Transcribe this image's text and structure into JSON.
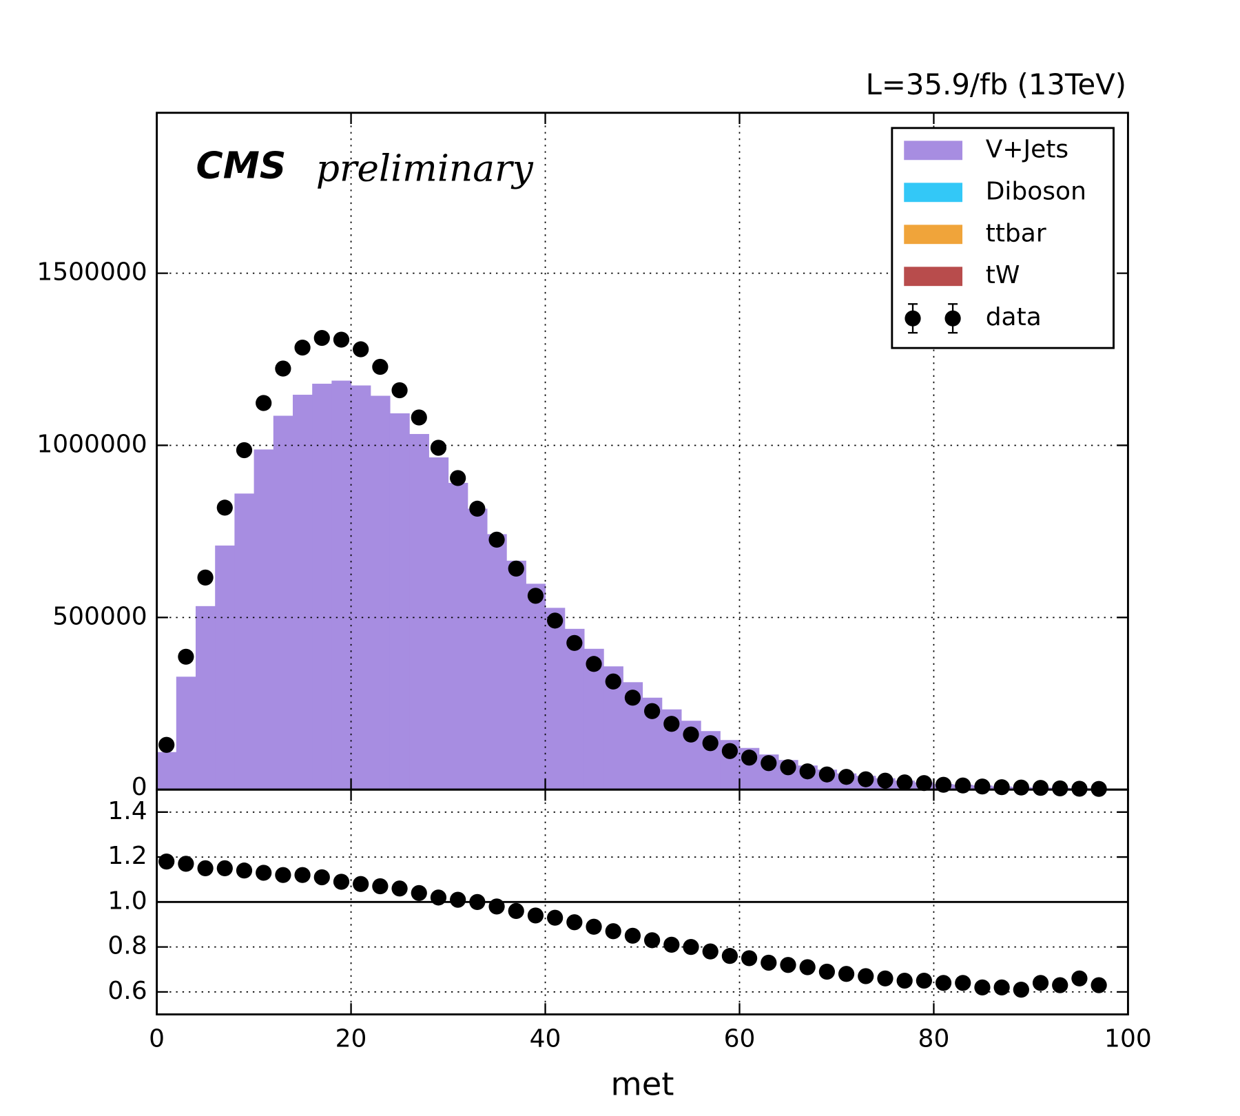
{
  "chart_data": [
    {
      "type": "histogram",
      "title": "L=35.9/fb (13TeV)",
      "annotations": [
        "CMS",
        "preliminary"
      ],
      "bins": [
        0,
        2,
        4,
        6,
        8,
        10,
        12,
        14,
        16,
        18,
        20,
        22,
        24,
        26,
        28,
        30,
        32,
        34,
        36,
        38,
        40,
        42,
        44,
        46,
        48,
        50,
        52,
        54,
        56,
        58,
        60,
        62,
        64,
        66,
        68,
        70,
        72,
        74,
        76,
        78,
        80,
        82,
        84,
        86,
        88,
        90,
        92,
        94,
        96,
        98,
        100
      ],
      "series": [
        {
          "name": "V+Jets",
          "color": "#a78de1",
          "values": [
            109000,
            328000,
            533000,
            709000,
            860000,
            988000,
            1086000,
            1147000,
            1179000,
            1188000,
            1174000,
            1144000,
            1093000,
            1033000,
            965000,
            891000,
            816000,
            742000,
            665000,
            598000,
            528000,
            467000,
            409000,
            358000,
            312000,
            267000,
            233000,
            200000,
            170000,
            144000,
            121000,
            102000,
            86000,
            70000,
            58000,
            47000,
            40000,
            33000,
            26000,
            21000,
            16000,
            14000,
            12000,
            9000,
            7000,
            6000,
            5000,
            4000,
            3000,
            2500
          ]
        },
        {
          "name": "Diboson",
          "color": "#33c8f7"
        },
        {
          "name": "ttbar",
          "color": "#f0a43a"
        },
        {
          "name": "tW",
          "color": "#b84c4c"
        }
      ],
      "data": {
        "name": "data",
        "color": "#000000",
        "x": [
          1,
          3,
          5,
          7,
          9,
          11,
          13,
          15,
          17,
          19,
          21,
          23,
          25,
          27,
          29,
          31,
          33,
          35,
          37,
          39,
          41,
          43,
          45,
          47,
          49,
          51,
          53,
          55,
          57,
          59,
          61,
          63,
          65,
          67,
          69,
          71,
          73,
          75,
          77,
          79,
          81,
          83,
          85,
          87,
          89,
          91,
          93,
          95,
          97
        ],
        "values": [
          130000,
          386000,
          616000,
          819000,
          986000,
          1123000,
          1223000,
          1284000,
          1312000,
          1307000,
          1279000,
          1228000,
          1160000,
          1081000,
          993000,
          905000,
          816000,
          726000,
          642000,
          563000,
          491000,
          426000,
          365000,
          314000,
          267000,
          228000,
          191000,
          160000,
          135000,
          112000,
          93000,
          77000,
          65000,
          53000,
          44000,
          37000,
          30000,
          26000,
          21000,
          19000,
          14000,
          12000,
          9000,
          7000,
          6000,
          5000,
          3500,
          2500,
          2000
        ]
      },
      "xlim": [
        0,
        100
      ],
      "xticks": [
        0,
        20,
        40,
        60,
        80,
        100
      ],
      "ylim": [
        0,
        1966000
      ],
      "yticks": [
        0,
        500000,
        1000000,
        1500000
      ],
      "grid": true,
      "legend": "upper right"
    },
    {
      "type": "scatter",
      "xlabel": "met",
      "x": [
        1,
        3,
        5,
        7,
        9,
        11,
        13,
        15,
        17,
        19,
        21,
        23,
        25,
        27,
        29,
        31,
        33,
        35,
        37,
        39,
        41,
        43,
        45,
        47,
        49,
        51,
        53,
        55,
        57,
        59,
        61,
        63,
        65,
        67,
        69,
        71,
        73,
        75,
        77,
        79,
        81,
        83,
        85,
        87,
        89,
        91,
        93,
        95,
        97
      ],
      "values": [
        1.18,
        1.17,
        1.15,
        1.15,
        1.14,
        1.13,
        1.12,
        1.12,
        1.11,
        1.09,
        1.08,
        1.07,
        1.06,
        1.04,
        1.02,
        1.01,
        1.0,
        0.98,
        0.96,
        0.94,
        0.93,
        0.91,
        0.89,
        0.87,
        0.85,
        0.83,
        0.81,
        0.8,
        0.78,
        0.76,
        0.75,
        0.73,
        0.72,
        0.71,
        0.69,
        0.68,
        0.67,
        0.66,
        0.65,
        0.65,
        0.64,
        0.64,
        0.62,
        0.62,
        0.61,
        0.64,
        0.63,
        0.66,
        0.63
      ],
      "color": "#000000",
      "reference_line": 1,
      "xlim": [
        0,
        100
      ],
      "xticks": [
        0,
        20,
        40,
        60,
        80,
        100
      ],
      "ylim": [
        0.5,
        1.5
      ],
      "yticks": [
        0.6,
        0.8,
        {
          "value": 1,
          "label": "1.0"
        },
        1.2,
        1.4
      ],
      "grid": true
    }
  ]
}
